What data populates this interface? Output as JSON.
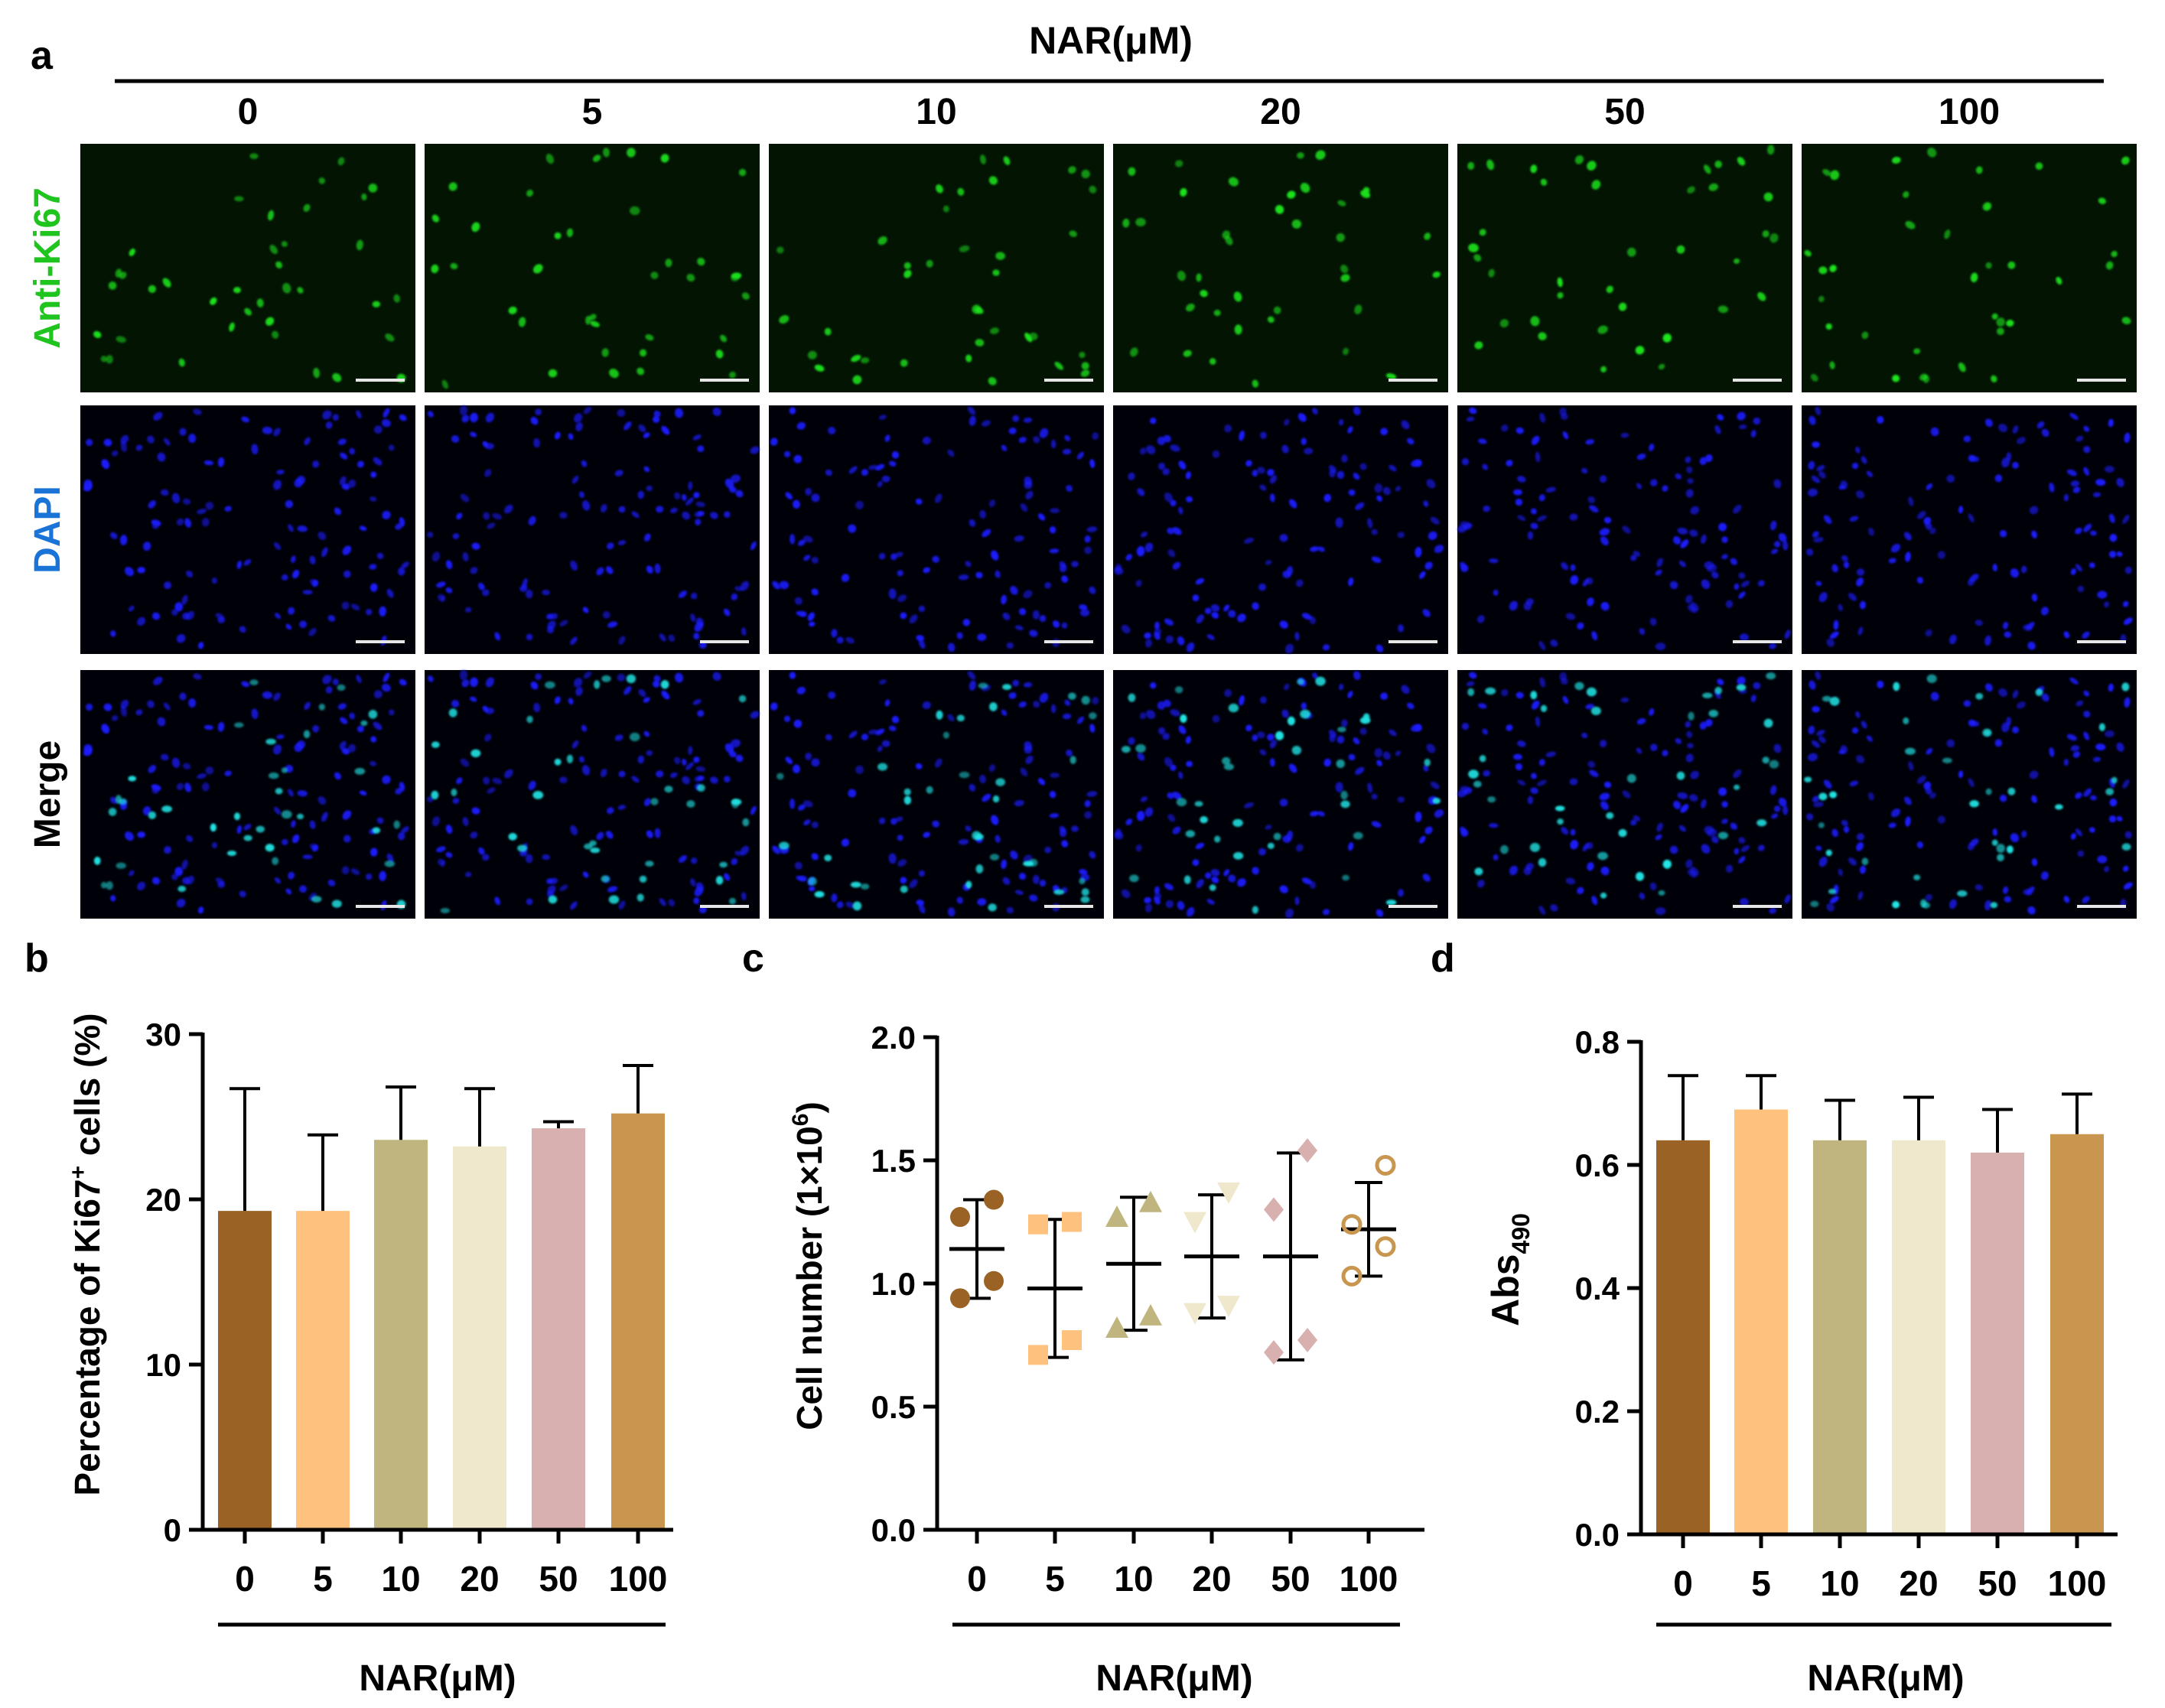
{
  "panel_labels": {
    "a": "a",
    "b": "b",
    "c": "c",
    "d": "d"
  },
  "micrograph": {
    "header": "NAR(μM)",
    "columns": [
      "0",
      "5",
      "10",
      "20",
      "50",
      "100"
    ],
    "rows": [
      {
        "label": "Anti-Ki67",
        "color": "#1fc41f",
        "channel": "ki67"
      },
      {
        "label": "DAPI",
        "color": "#1a73d6",
        "channel": "dapi"
      },
      {
        "label": "Merge",
        "color": "#000000",
        "channel": "merge"
      }
    ],
    "channel_colors": {
      "ki67": "#1ee61e",
      "dapi": "#1a1aff",
      "merge_cyan": "#22e6e6"
    }
  },
  "colors": {
    "series": [
      "#9a6224",
      "#ffc27e",
      "#c1b57f",
      "#efe8cd",
      "#d8b0b0",
      "#c99650"
    ]
  },
  "chart_data": [
    {
      "id": "b",
      "type": "bar",
      "categories": [
        "0",
        "5",
        "10",
        "20",
        "50",
        "100"
      ],
      "values": [
        19.3,
        19.3,
        23.6,
        23.2,
        24.3,
        25.2
      ],
      "error_upper": [
        26.7,
        23.9,
        26.8,
        26.7,
        24.7,
        28.1
      ],
      "ylabel_prefix": "Percentage of Ki67",
      "ylabel_sup": "+",
      "ylabel_suffix": " cells (%)",
      "xlabel": "NAR(μM)",
      "ylim": [
        0,
        30
      ],
      "yticks": [
        "0",
        "10",
        "20",
        "30"
      ]
    },
    {
      "id": "c",
      "type": "scatter",
      "categories": [
        "0",
        "5",
        "10",
        "20",
        "50",
        "100"
      ],
      "points": [
        [
          0.94,
          1.01,
          1.27,
          1.34
        ],
        [
          0.71,
          0.77,
          1.24,
          1.25
        ],
        [
          0.82,
          0.87,
          1.27,
          1.33
        ],
        [
          0.88,
          0.91,
          1.25,
          1.37
        ],
        [
          0.72,
          0.77,
          1.3,
          1.54
        ],
        [
          1.03,
          1.15,
          1.24,
          1.48
        ]
      ],
      "means": [
        1.14,
        0.98,
        1.08,
        1.11,
        1.11,
        1.22
      ],
      "sd": [
        0.2,
        0.28,
        0.27,
        0.25,
        0.42,
        0.19
      ],
      "markers": [
        "circle",
        "square",
        "triangle-up",
        "triangle-down",
        "diamond",
        "circle-open"
      ],
      "ylabel_prefix": "Cell number (1×10",
      "ylabel_sup": "6",
      "ylabel_suffix": ")",
      "xlabel": "NAR(μM)",
      "ylim": [
        0,
        2.0
      ],
      "yticks": [
        "0.0",
        "0.5",
        "1.0",
        "1.5",
        "2.0"
      ]
    },
    {
      "id": "d",
      "type": "bar",
      "categories": [
        "0",
        "5",
        "10",
        "20",
        "50",
        "100"
      ],
      "values": [
        0.64,
        0.69,
        0.64,
        0.64,
        0.62,
        0.65
      ],
      "error_upper": [
        0.745,
        0.745,
        0.705,
        0.71,
        0.69,
        0.715
      ],
      "ylabel_prefix": "Abs",
      "ylabel_sub": "490",
      "xlabel": "NAR(μM)",
      "ylim": [
        0,
        0.8
      ],
      "yticks": [
        "0.0",
        "0.2",
        "0.4",
        "0.6",
        "0.8"
      ]
    }
  ]
}
